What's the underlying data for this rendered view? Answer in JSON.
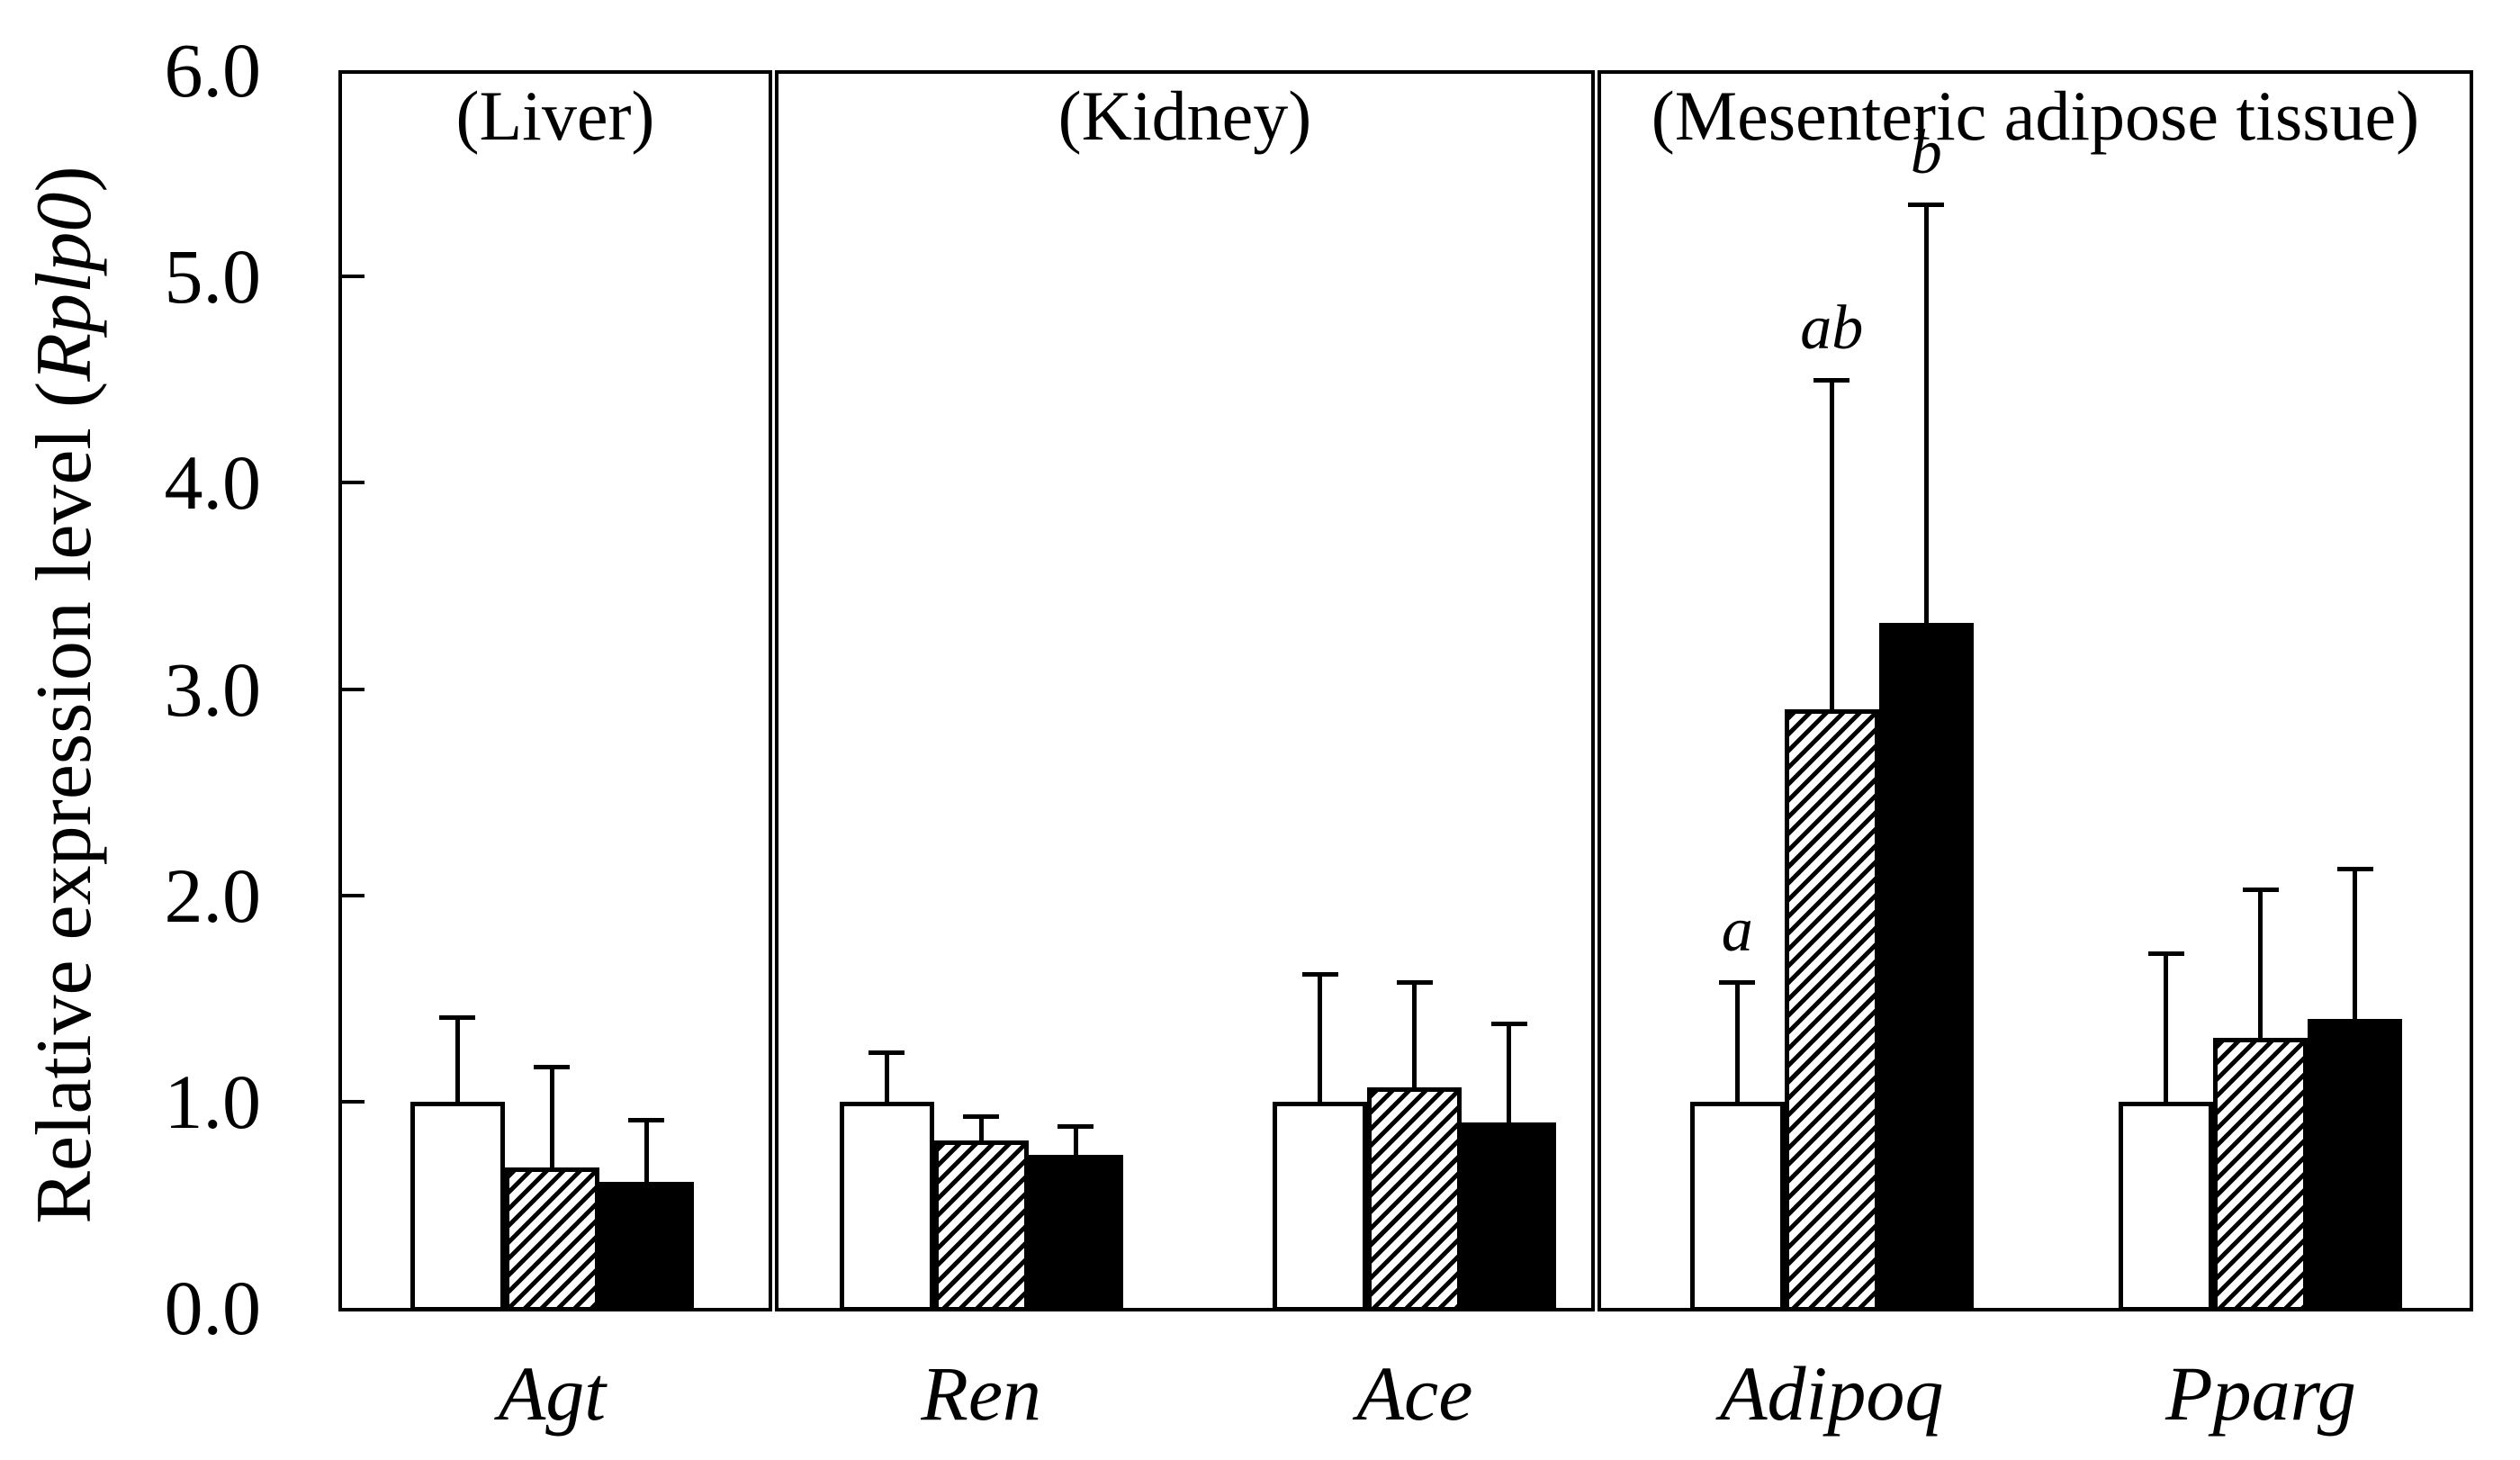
{
  "figure": {
    "background_color": "#ffffff",
    "ink_color": "#000000",
    "description": "Grouped bar chart of relative gene expression with SD error bars"
  },
  "chart_data": {
    "type": "bar",
    "title": "",
    "y_axis": {
      "label_prefix": "Relative expression level (",
      "label_italic": "Rplp0",
      "label_suffix": ")",
      "min": 0,
      "max": 6,
      "tick_step": 1.0,
      "tick_labels": [
        "0.0",
        "1.0",
        "2.0",
        "3.0",
        "4.0",
        "5.0",
        "6.0"
      ]
    },
    "bar_styles": [
      "white",
      "hatched",
      "black"
    ],
    "legend": "none",
    "grid": false,
    "error_bars": "upper standard deviation, capped",
    "panels": [
      {
        "label": "(Liver)",
        "width_frac": 0.2032,
        "groups": [
          {
            "gene": "Agt",
            "center_frac": 0.1001,
            "bars": [
              {
                "style": "white",
                "mean": 1.0,
                "err_up": 0.41,
                "letter": ""
              },
              {
                "style": "hatched",
                "mean": 0.68,
                "err_up": 0.49,
                "letter": ""
              },
              {
                "style": "black",
                "mean": 0.61,
                "err_up": 0.3,
                "letter": ""
              }
            ]
          }
        ]
      },
      {
        "label": "(Kidney)",
        "width_frac": 0.3853,
        "groups": [
          {
            "gene": "Ren",
            "center_frac": 0.3011,
            "bars": [
              {
                "style": "white",
                "mean": 1.0,
                "err_up": 0.24,
                "letter": ""
              },
              {
                "style": "hatched",
                "mean": 0.81,
                "err_up": 0.12,
                "letter": ""
              },
              {
                "style": "black",
                "mean": 0.74,
                "err_up": 0.14,
                "letter": ""
              }
            ]
          },
          {
            "gene": "Ace",
            "center_frac": 0.5042,
            "bars": [
              {
                "style": "white",
                "mean": 1.0,
                "err_up": 0.62,
                "letter": ""
              },
              {
                "style": "hatched",
                "mean": 1.07,
                "err_up": 0.51,
                "letter": ""
              },
              {
                "style": "black",
                "mean": 0.9,
                "err_up": 0.48,
                "letter": ""
              }
            ]
          }
        ]
      },
      {
        "label": "(Mesenteric adipose tissue)",
        "width_frac": 0.4115,
        "groups": [
          {
            "gene": "Adipoq",
            "center_frac": 0.6995,
            "bars": [
              {
                "style": "white",
                "mean": 1.0,
                "err_up": 0.58,
                "letter": "a"
              },
              {
                "style": "hatched",
                "mean": 2.9,
                "err_up": 1.6,
                "letter": "ab"
              },
              {
                "style": "black",
                "mean": 3.32,
                "err_up": 2.03,
                "letter": "b"
              }
            ]
          },
          {
            "gene": "Pparg",
            "center_frac": 0.9005,
            "bars": [
              {
                "style": "white",
                "mean": 1.0,
                "err_up": 0.72,
                "letter": ""
              },
              {
                "style": "hatched",
                "mean": 1.31,
                "err_up": 0.72,
                "letter": ""
              },
              {
                "style": "black",
                "mean": 1.4,
                "err_up": 0.73,
                "letter": ""
              }
            ]
          }
        ]
      }
    ]
  }
}
